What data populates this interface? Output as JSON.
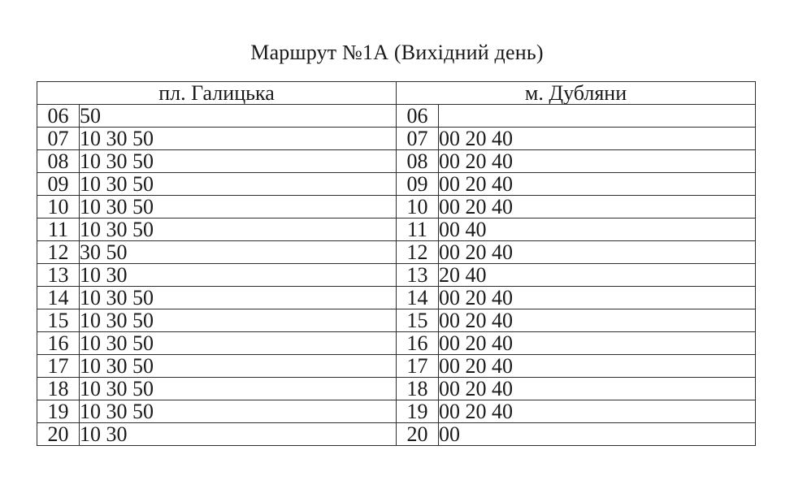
{
  "title": "Маршрут №1А (Вихідний день)",
  "table": {
    "headers": [
      "пл. Галицька",
      "м. Дубляни"
    ],
    "rows": [
      {
        "hour": "06",
        "halytska": "50",
        "dubliany": ""
      },
      {
        "hour": "07",
        "halytska": "10 30 50",
        "dubliany": "00 20 40"
      },
      {
        "hour": "08",
        "halytska": "10 30 50",
        "dubliany": "00 20 40"
      },
      {
        "hour": "09",
        "halytska": "10 30 50",
        "dubliany": "00 20 40"
      },
      {
        "hour": "10",
        "halytska": "10 30 50",
        "dubliany": "00 20 40"
      },
      {
        "hour": "11",
        "halytska": "10 30 50",
        "dubliany": "00 40"
      },
      {
        "hour": "12",
        "halytska": "30 50",
        "dubliany": "00 20 40"
      },
      {
        "hour": "13",
        "halytska": "10 30",
        "dubliany": "20 40"
      },
      {
        "hour": "14",
        "halytska": "10 30 50",
        "dubliany": "00 20 40"
      },
      {
        "hour": "15",
        "halytska": "10 30 50",
        "dubliany": "00 20 40"
      },
      {
        "hour": "16",
        "halytska": "10 30 50",
        "dubliany": "00 20 40"
      },
      {
        "hour": "17",
        "halytska": "10 30 50",
        "dubliany": "00 20 40"
      },
      {
        "hour": "18",
        "halytska": "10 30 50",
        "dubliany": "00 20 40"
      },
      {
        "hour": "19",
        "halytska": "10 30 50",
        "dubliany": "00 20 40"
      },
      {
        "hour": "20",
        "halytska": "10 30",
        "dubliany": "00"
      }
    ]
  },
  "colors": {
    "background": "#ffffff",
    "text": "#1a1a1a",
    "border": "#2e2e2e"
  }
}
